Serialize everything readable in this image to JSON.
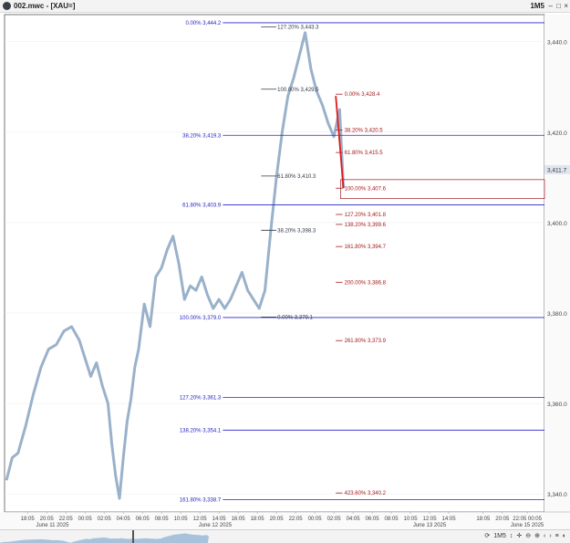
{
  "window": {
    "title": "002.mwc - [XAU=]",
    "timeframe": "1M5",
    "controls": {
      "minimize": "–",
      "maximize": "□",
      "close": "×"
    }
  },
  "toolbar": {
    "timeframe": "1M5",
    "lock": "🔒"
  },
  "colors": {
    "price_line": "#8fa9c4",
    "blue_fib": "#2525c8",
    "dark_fib": "#303a4a",
    "red_fib": "#a51a1a",
    "red_leg": "#e01a1a",
    "last_price_bg": "#dfe6ef"
  },
  "chart_data": {
    "type": "line",
    "ylim": [
      3336,
      3446
    ],
    "yticks": [
      "3,440.0",
      "3,420.0",
      "3,400.0",
      "3,380.0",
      "3,360.0",
      "3,340.0"
    ],
    "ytick_values": [
      3440,
      3420,
      3400,
      3380,
      3360,
      3340
    ],
    "last_price_label": "3,411.7",
    "last_price": 3411.7,
    "xticks": [
      "18:05",
      "20:05",
      "22:05",
      "00:05",
      "02:05",
      "04:05",
      "06:05",
      "08:05",
      "10:05",
      "12:05",
      "14:05",
      "16:05",
      "18:05",
      "20:05",
      "22:05",
      "00:05",
      "02:05",
      "04:05",
      "06:05",
      "08:05",
      "10:05",
      "12:05",
      "14:05",
      "18:05",
      "20:05",
      "22:05 00:05"
    ],
    "xtick_positions": [
      0.5,
      1.5,
      2.5,
      3.5,
      4.5,
      5.5,
      6.5,
      7.5,
      8.5,
      9.5,
      10.5,
      11.5,
      12.5,
      13.5,
      14.5,
      15.5,
      16.5,
      17.5,
      18.5,
      19.5,
      20.5,
      21.5,
      22.5,
      24.3,
      25.3,
      26.6
    ],
    "date_labels": [
      "June 11 2025",
      "June 12 2025",
      "June 13 2025",
      "June 15 2025"
    ],
    "date_positions": [
      1.8,
      10.3,
      21.5,
      26.6
    ],
    "x_range": [
      -0.7,
      27.5
    ],
    "series": [
      {
        "x": [
          -0.6,
          -0.3,
          0.0,
          0.4,
          0.8,
          1.2,
          1.6,
          2.0,
          2.4,
          2.8,
          3.2,
          3.5,
          3.8,
          4.1,
          4.4,
          4.7,
          4.9,
          5.1,
          5.3,
          5.5,
          5.7,
          5.9,
          6.1,
          6.3,
          6.6,
          6.9,
          7.2,
          7.5,
          7.8,
          8.1,
          8.4,
          8.7,
          9.0,
          9.3,
          9.6,
          9.9,
          10.2,
          10.5,
          10.8,
          11.1,
          11.4,
          11.7,
          12.0,
          12.3,
          12.6,
          12.9,
          13.2,
          13.5,
          13.8,
          14.1,
          14.4,
          14.7,
          15.0,
          15.3,
          15.6,
          15.9,
          16.2,
          16.5,
          16.8,
          17.0
        ],
        "values": [
          3343,
          3348,
          3349,
          3355,
          3362,
          3368,
          3372,
          3373,
          3376,
          3377,
          3374,
          3370,
          3366,
          3369,
          3364,
          3360,
          3351,
          3344,
          3339,
          3348,
          3356,
          3361,
          3368,
          3372,
          3382,
          3377,
          3388,
          3390,
          3394,
          3397,
          3391,
          3383,
          3386,
          3385,
          3388,
          3384,
          3381,
          3383,
          3381,
          3383,
          3386,
          3389,
          3385,
          3383,
          3381,
          3385,
          3398,
          3410,
          3420,
          3428,
          3432,
          3437,
          3442,
          3434,
          3429,
          3426,
          3422,
          3419,
          3425,
          3407.6
        ]
      }
    ],
    "fib_blue": [
      {
        "label": "0.00% 3,444.2",
        "price": 3444.2
      },
      {
        "label": "38.20% 3,419.3",
        "price": 3419.3
      },
      {
        "label": "61.80% 3,403.9",
        "price": 3403.9
      },
      {
        "label": "100.00% 3,379.0",
        "price": 3379.0
      },
      {
        "label": "127.20% 3,361.3",
        "price": 3361.3
      },
      {
        "label": "138.20% 3,354.1",
        "price": 3354.1
      },
      {
        "label": "161.80% 3,338.7",
        "price": 3338.7
      }
    ],
    "fib_dark": [
      {
        "label": "127.20% 3,443.3",
        "price": 3443.3
      },
      {
        "label": "100.00% 3,429.5",
        "price": 3429.5
      },
      {
        "label": "61.80% 3,410.3",
        "price": 3410.3
      },
      {
        "label": "38.20% 3,398.3",
        "price": 3398.3
      },
      {
        "label": "0.00% 3,379.1",
        "price": 3379.1
      }
    ],
    "fib_red": [
      {
        "label": "0.00% 3,428.4",
        "price": 3428.4
      },
      {
        "label": "38.20% 3,420.5",
        "price": 3420.5
      },
      {
        "label": "61.80% 3,415.5",
        "price": 3415.5
      },
      {
        "label": "100.00% 3,407.6",
        "price": 3407.6
      },
      {
        "label": "127.20% 3,401.8",
        "price": 3401.8
      },
      {
        "label": "138.20% 3,399.6",
        "price": 3399.6
      },
      {
        "label": "161.80% 3,394.7",
        "price": 3394.7
      },
      {
        "label": "200.00% 3,386.8",
        "price": 3386.8
      },
      {
        "label": "261.80% 3,373.9",
        "price": 3373.9
      },
      {
        "label": "423.60% 3,340.2",
        "price": 3340.2
      }
    ],
    "red_leg": {
      "x": [
        16.6,
        17.0
      ],
      "values": [
        3428,
        3407.6
      ]
    }
  }
}
